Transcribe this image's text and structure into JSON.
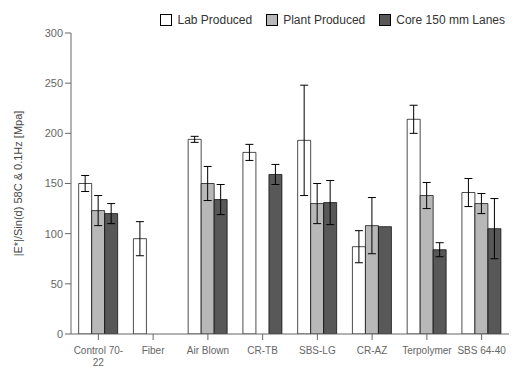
{
  "chart_data": {
    "type": "bar",
    "categories": [
      "Control 70-\n22",
      "Fiber",
      "Air Blown",
      "CR-TB",
      "SBS-LG",
      "CR-AZ",
      "Terpolymer",
      "SBS 64-40"
    ],
    "series": [
      {
        "name": "Lab Produced",
        "color": "white",
        "values": [
          150,
          95,
          194,
          181,
          193,
          87,
          214,
          141
        ],
        "errors": [
          8,
          17,
          3,
          8,
          55,
          16,
          14,
          14
        ]
      },
      {
        "name": "Plant Produced",
        "color": "#b8b8b8",
        "values": [
          123,
          null,
          150,
          null,
          130,
          108,
          138,
          130
        ],
        "errors": [
          15,
          null,
          17,
          null,
          20,
          28,
          13,
          10
        ]
      },
      {
        "name": "Core 150 mm Lanes",
        "color": "#585858",
        "values": [
          120,
          null,
          134,
          159,
          131,
          107,
          84,
          105
        ],
        "errors": [
          10,
          null,
          15,
          10,
          22,
          null,
          7,
          30
        ]
      }
    ],
    "ylabel": "|E*|/Sin(d) 58C & 0.1Hz [Mpa]",
    "ylim": [
      0,
      300
    ],
    "yticks": [
      0,
      50,
      100,
      150,
      200,
      250,
      300
    ],
    "legend": "upper right",
    "grid": false
  }
}
